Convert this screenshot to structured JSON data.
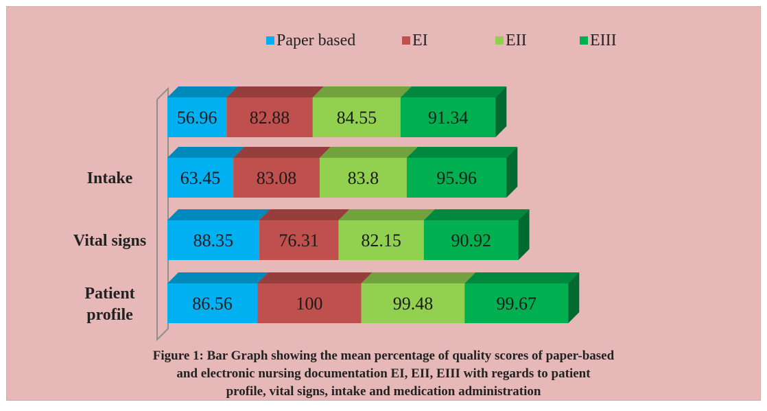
{
  "chart_data": {
    "type": "bar",
    "orientation": "horizontal",
    "stacked": true,
    "three_d": true,
    "categories": [
      "",
      "Intake",
      "Vital signs",
      "Patient profile"
    ],
    "series": [
      {
        "name": "Paper based",
        "color": "#00b0f0",
        "values": [
          56.96,
          63.45,
          88.35,
          86.56
        ]
      },
      {
        "name": "EI",
        "color": "#c0504d",
        "values": [
          82.88,
          83.08,
          76.31,
          100
        ]
      },
      {
        "name": "EII",
        "color": "#92d050",
        "values": [
          84.55,
          83.8,
          82.15,
          99.48
        ]
      },
      {
        "name": "EIII",
        "color": "#00b050",
        "values": [
          91.34,
          95.96,
          90.92,
          99.67
        ]
      }
    ],
    "legend_position": "top",
    "grid": false
  },
  "caption_lines": [
    "Figure 1: Bar Graph showing the mean percentage of quality scores of paper-based",
    "and electronic nursing  documentation EI,  EII, EIII with regards to patient",
    "profile, vital signs, intake and medication administration"
  ],
  "colors": {
    "background": "#e6b9b8"
  }
}
